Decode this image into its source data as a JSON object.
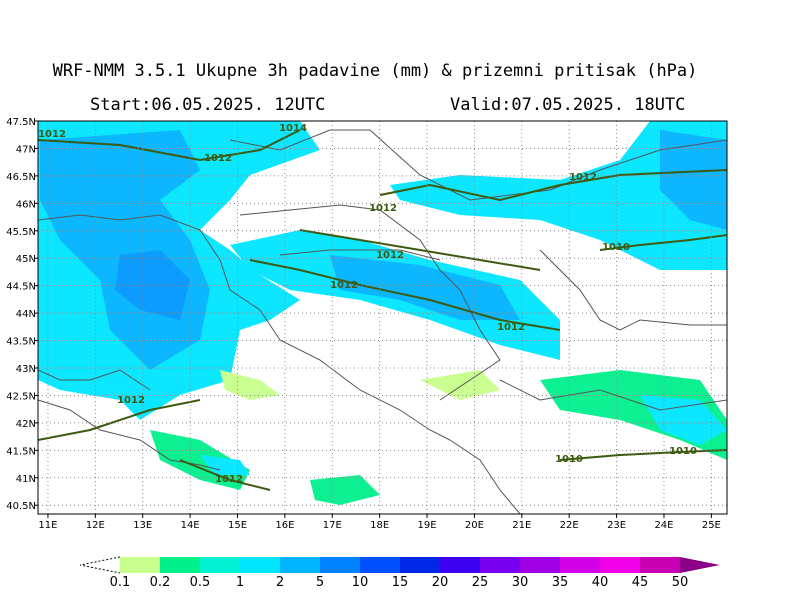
{
  "header": {
    "title": "WRF-NMM 3.5.1  Ukupne 3h padavine (mm) & prizemni pritisak (hPa)",
    "start": "Start:06.05.2025.  12UTC",
    "valid": "Valid:07.05.2025.  18UTC"
  },
  "map": {
    "lonlim": [
      10.79,
      25.33
    ],
    "latlim": [
      40.34,
      47.5
    ],
    "lon_ticks": [
      {
        "value": 11,
        "label": "11E"
      },
      {
        "value": 12,
        "label": "12E"
      },
      {
        "value": 13,
        "label": "13E"
      },
      {
        "value": 14,
        "label": "14E"
      },
      {
        "value": 15,
        "label": "15E"
      },
      {
        "value": 16,
        "label": "16E"
      },
      {
        "value": 17,
        "label": "17E"
      },
      {
        "value": 18,
        "label": "18E"
      },
      {
        "value": 19,
        "label": "19E"
      },
      {
        "value": 20,
        "label": "20E"
      },
      {
        "value": 21,
        "label": "21E"
      },
      {
        "value": 22,
        "label": "22E"
      },
      {
        "value": 23,
        "label": "23E"
      },
      {
        "value": 24,
        "label": "24E"
      },
      {
        "value": 25,
        "label": "25E"
      }
    ],
    "lat_ticks": [
      {
        "value": 40.5,
        "label": "40.5N"
      },
      {
        "value": 41,
        "label": "41N"
      },
      {
        "value": 41.5,
        "label": "41.5N"
      },
      {
        "value": 42,
        "label": "42N"
      },
      {
        "value": 42.5,
        "label": "42.5N"
      },
      {
        "value": 43,
        "label": "43N"
      },
      {
        "value": 43.5,
        "label": "43.5N"
      },
      {
        "value": 44,
        "label": "44N"
      },
      {
        "value": 44.5,
        "label": "44.5N"
      },
      {
        "value": 45,
        "label": "45N"
      },
      {
        "value": 45.5,
        "label": "45.5N"
      },
      {
        "value": 46,
        "label": "46N"
      },
      {
        "value": 46.5,
        "label": "46.5N"
      },
      {
        "value": 47,
        "label": "47N"
      },
      {
        "value": 47.5,
        "label": "47.5N"
      }
    ],
    "isobar_labels": [
      "1012",
      "1012",
      "1012",
      "1012",
      "1012",
      "1012",
      "1012",
      "1012",
      "1012",
      "1014",
      "1010",
      "1010",
      "1010"
    ]
  },
  "colorbar": {
    "labels": [
      "0.1",
      "0.2",
      "0.5",
      "1",
      "2",
      "5",
      "10",
      "15",
      "20",
      "25",
      "30",
      "35",
      "40",
      "45",
      "50"
    ],
    "colors": [
      "#c8ff8c",
      "#00f08c",
      "#00f0d2",
      "#00e6ff",
      "#00b4ff",
      "#0082ff",
      "#0050ff",
      "#0028e6",
      "#3c00f0",
      "#7800f0",
      "#a000e6",
      "#d200e6",
      "#f000e6",
      "#c800b4",
      "#8c0087"
    ]
  }
}
